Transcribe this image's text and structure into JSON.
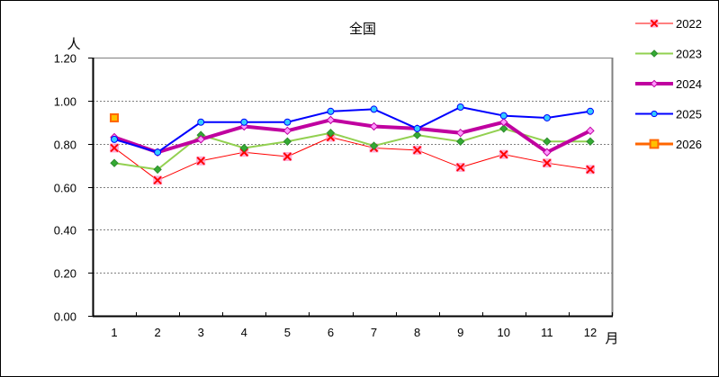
{
  "chart_data": {
    "type": "line",
    "title": "全国",
    "xlabel": "月",
    "ylabel": "人",
    "ylim": [
      0,
      1.2
    ],
    "yticks": [
      "0.00",
      "0.20",
      "0.40",
      "0.60",
      "0.80",
      "1.00",
      "1.20"
    ],
    "categories": [
      "1",
      "2",
      "3",
      "4",
      "5",
      "6",
      "7",
      "8",
      "9",
      "10",
      "11",
      "12"
    ],
    "grid": "horizontal dashed",
    "legend_position": "right",
    "series": [
      {
        "name": "2022",
        "color": "#ff0000",
        "marker": "x",
        "marker_fill": "#ff99cc",
        "line_width": 1,
        "values": [
          0.78,
          0.63,
          0.72,
          0.76,
          0.74,
          0.83,
          0.78,
          0.77,
          0.69,
          0.75,
          0.71,
          0.68
        ]
      },
      {
        "name": "2023",
        "color": "#92d050",
        "marker": "diamond",
        "marker_fill": "#33aa33",
        "line_width": 2,
        "values": [
          0.71,
          0.68,
          0.84,
          0.78,
          0.81,
          0.85,
          0.79,
          0.84,
          0.81,
          0.87,
          0.81,
          0.81
        ]
      },
      {
        "name": "2024",
        "color": "#c000a0",
        "marker": "diamond",
        "marker_fill": "#ff99ff",
        "line_width": 4,
        "values": [
          0.83,
          0.76,
          0.82,
          0.88,
          0.86,
          0.91,
          0.88,
          0.87,
          0.85,
          0.9,
          0.76,
          0.86
        ]
      },
      {
        "name": "2025",
        "color": "#0000ff",
        "marker": "circle",
        "marker_fill": "#33ccff",
        "line_width": 2,
        "values": [
          0.82,
          0.76,
          0.9,
          0.9,
          0.9,
          0.95,
          0.96,
          0.87,
          0.97,
          0.93,
          0.92,
          0.95
        ]
      },
      {
        "name": "2026",
        "color": "#ff6600",
        "marker": "square",
        "marker_fill": "#ffc000",
        "line_width": 3,
        "values": [
          0.92,
          null,
          null,
          null,
          null,
          null,
          null,
          null,
          null,
          null,
          null,
          null
        ]
      }
    ]
  }
}
